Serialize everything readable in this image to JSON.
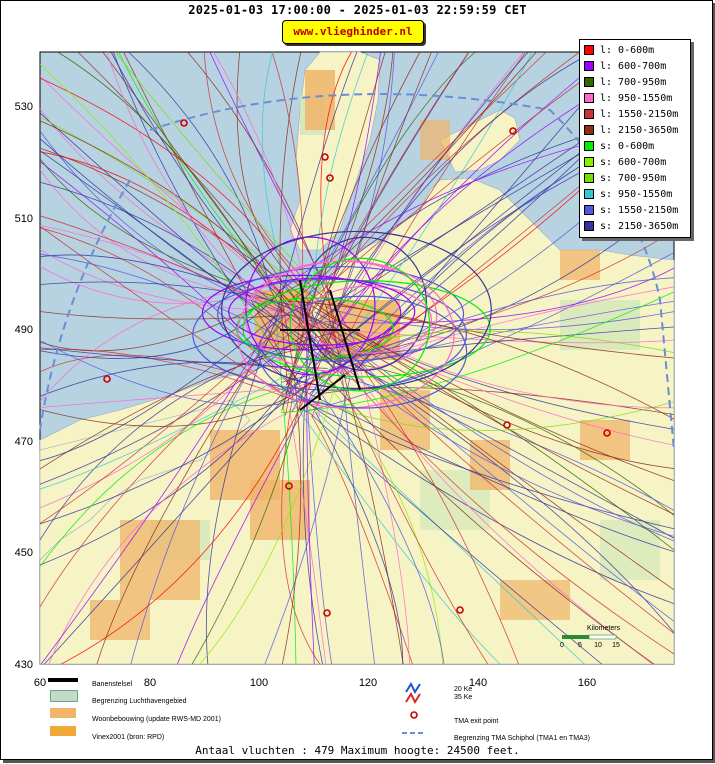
{
  "header": {
    "title": "2025-01-03 17:00:00 - 2025-01-03 22:59:59 CET",
    "brand": "www.vlieghinder.nl"
  },
  "map": {
    "x_axis_labels": [
      "60",
      "80",
      "100",
      "120",
      "140",
      "160"
    ],
    "y_axis_labels": [
      "530",
      "510",
      "490",
      "470",
      "450",
      "430"
    ],
    "scale_bar": {
      "title": "Kilometers",
      "ticks": [
        "0",
        "5",
        "10",
        "15"
      ]
    },
    "colors": {
      "sea": "#b7d3e2",
      "land": "#f6f3c5",
      "urban": "#f0b46a",
      "green": "#cfe6b8"
    }
  },
  "legend": {
    "items": [
      {
        "label": "l: 0-600m",
        "color": "#ff0000"
      },
      {
        "label": "l: 600-700m",
        "color": "#9900ff"
      },
      {
        "label": "l: 700-950m",
        "color": "#336600"
      },
      {
        "label": "l: 950-1550m",
        "color": "#ff66cc"
      },
      {
        "label": "l: 1550-2150m",
        "color": "#cc3333"
      },
      {
        "label": "l: 2150-3650m",
        "color": "#8b2d1a"
      },
      {
        "label": "s: 0-600m",
        "color": "#00ee00"
      },
      {
        "label": "s: 600-700m",
        "color": "#88ee00"
      },
      {
        "label": "s: 700-950m",
        "color": "#77dd00"
      },
      {
        "label": "s: 950-1550m",
        "color": "#33cccc"
      },
      {
        "label": "s: 1550-2150m",
        "color": "#5555dd"
      },
      {
        "label": "s: 2150-3650m",
        "color": "#333399"
      }
    ]
  },
  "bottom_legend": {
    "runways": "Banenstelsel",
    "airport_boundary": "Begrenzing Luchthavengebied",
    "housing": "Woonbebouwing (update RWS-MD 2001)",
    "vinex": "Vinex2001 (bron: RPD)",
    "ke20": "20 Ke",
    "ke35": "35 Ke",
    "tma_exit": "TMA exit point",
    "tma_boundary": "Begrenzing TMA Schiphol  (TMA1 en TMA3)"
  },
  "footer": {
    "text": "Antaal vluchten : 479 Maximum hoogte: 24500 feet."
  }
}
